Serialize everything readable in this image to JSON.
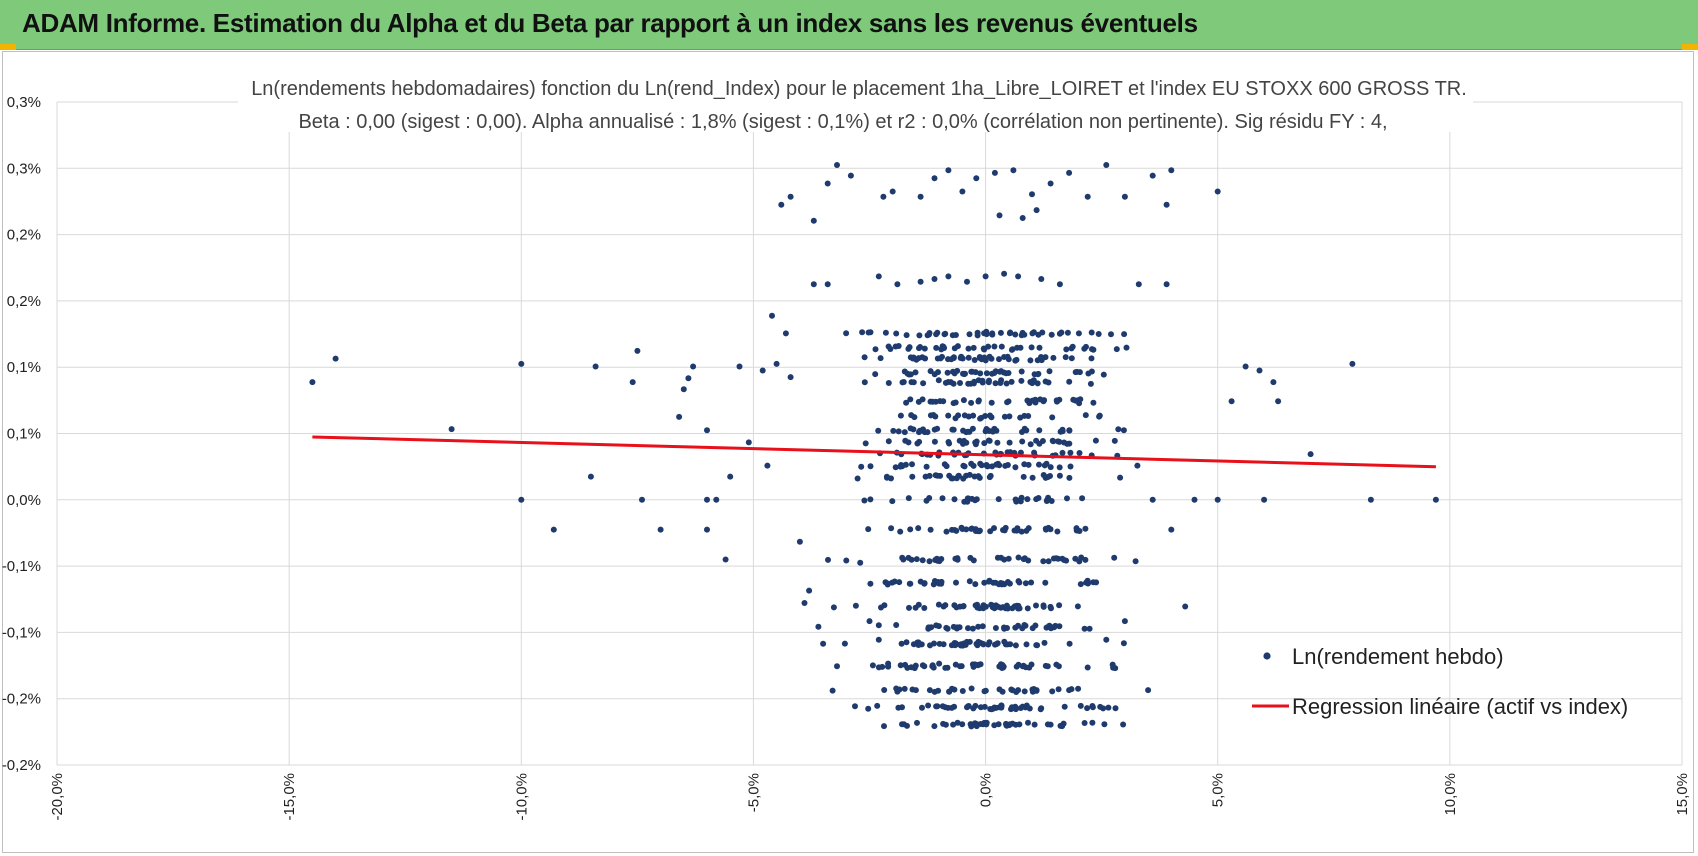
{
  "header": {
    "title": "ADAM Informe. Estimation du Alpha et du Beta par rapport à un index sans les revenus éventuels"
  },
  "colors": {
    "header_bg": "#7ec97a",
    "accent_corner": "#f2b400",
    "points": "#1f3b6e",
    "regression": "#e8101a"
  },
  "chart_data": {
    "type": "scatter",
    "title": "Ln(rendements hebdomadaires) fonction du Ln(rend_Index) pour le placement 1ha_Libre_LOIRET et l'index EU STOXX  600 GROSS TR.",
    "subtitle": "Beta : 0,00 (sigest : 0,00).  Alpha annualisé : 1,8% (sigest : 0,1%) et r2 : 0,0% (corrélation non pertinente). Sig résidu FY : 4,",
    "xlabel": "",
    "ylabel": "",
    "xlim": [
      -20,
      15
    ],
    "ylim": [
      -0.2,
      0.3
    ],
    "x_ticks": [
      "-20,0%",
      "-15,0%",
      "-10,0%",
      "-5,0%",
      "0,0%",
      "5,0%",
      "10,0%",
      "15,0%"
    ],
    "y_ticks": [
      "-0,2%",
      "-0,2%",
      "-0,1%",
      "-0,1%",
      "0,0%",
      "0,1%",
      "0,1%",
      "0,2%",
      "0,2%",
      "0,3%",
      "0,3%"
    ],
    "legend_position": "bottom-right",
    "series": [
      {
        "name": "Ln(rendement hebdo)",
        "kind": "scatter",
        "points": [
          [
            -14.5,
            0.0888
          ],
          [
            -14.0,
            0.1065
          ],
          [
            -11.5,
            0.0533
          ],
          [
            -10.0,
            0.1025
          ],
          [
            -10.0,
            0.0
          ],
          [
            -9.3,
            -0.0225
          ],
          [
            -8.5,
            0.0175
          ],
          [
            -8.4,
            0.1005
          ],
          [
            -7.5,
            0.1123
          ],
          [
            -7.6,
            0.0888
          ],
          [
            -7.4,
            0.0
          ],
          [
            -7.0,
            -0.0225
          ],
          [
            -6.6,
            0.0625
          ],
          [
            -6.5,
            0.0833
          ],
          [
            -6.4,
            0.0917
          ],
          [
            -6.3,
            0.1005
          ],
          [
            -6.0,
            0.0525
          ],
          [
            -6.0,
            0.0
          ],
          [
            -6.0,
            -0.0225
          ],
          [
            -5.8,
            0.0
          ],
          [
            -5.6,
            -0.045
          ],
          [
            -5.5,
            0.0175
          ],
          [
            -5.3,
            0.1005
          ],
          [
            -5.1,
            0.0433
          ],
          [
            -4.7,
            0.0258
          ],
          [
            -4.5,
            0.1025
          ],
          [
            -4.8,
            0.0975
          ],
          [
            -4.6,
            0.1388
          ],
          [
            -4.3,
            0.1255
          ],
          [
            -4.2,
            0.0925
          ],
          [
            -4.0,
            -0.0317
          ],
          [
            -3.8,
            -0.0685
          ],
          [
            -3.6,
            -0.0958
          ],
          [
            -3.9,
            -0.0778
          ],
          [
            -3.5,
            -0.1085
          ],
          [
            -3.2,
            -0.1255
          ],
          [
            -3.0,
            -0.0458
          ],
          [
            -2.7,
            -0.0475
          ],
          [
            -2.5,
            -0.0915
          ],
          [
            -2.3,
            -0.1055
          ],
          [
            -2.1,
            -0.1235
          ],
          [
            -1.8,
            -0.1565
          ],
          [
            -1.5,
            -0.1435
          ],
          [
            -1.2,
            -0.1435
          ],
          [
            -1.0,
            -0.1235
          ],
          [
            -0.7,
            -0.1695
          ],
          [
            -0.4,
            -0.1565
          ],
          [
            -0.1,
            -0.1565
          ],
          [
            0.3,
            -0.1565
          ],
          [
            0.7,
            -0.1435
          ],
          [
            1.1,
            -0.1435
          ],
          [
            1.4,
            -0.1695
          ],
          [
            1.8,
            -0.1435
          ],
          [
            2.2,
            -0.1265
          ],
          [
            2.6,
            -0.1055
          ],
          [
            3.0,
            -0.0915
          ],
          [
            3.5,
            -0.1435
          ],
          [
            4.3,
            -0.0805
          ],
          [
            4.0,
            -0.0225
          ],
          [
            3.6,
            0.0
          ],
          [
            4.5,
            0.0
          ],
          [
            5.0,
            0.0
          ],
          [
            5.3,
            0.0743
          ],
          [
            5.6,
            0.1005
          ],
          [
            5.9,
            0.0975
          ],
          [
            6.0,
            0.0
          ],
          [
            6.2,
            0.0888
          ],
          [
            6.3,
            0.0743
          ],
          [
            7.0,
            0.0345
          ],
          [
            7.9,
            0.1025
          ],
          [
            8.3,
            0.0
          ],
          [
            9.7,
            0.0
          ],
          [
            -4.4,
            0.2225
          ],
          [
            -4.2,
            0.2285
          ],
          [
            -3.7,
            0.2105
          ],
          [
            -3.4,
            0.2385
          ],
          [
            -3.2,
            0.2525
          ],
          [
            -2.9,
            0.2445
          ],
          [
            -2.2,
            0.2285
          ],
          [
            -2.0,
            0.2325
          ],
          [
            -1.4,
            0.2285
          ],
          [
            -1.1,
            0.2425
          ],
          [
            -0.8,
            0.2485
          ],
          [
            -0.5,
            0.2325
          ],
          [
            -0.2,
            0.2425
          ],
          [
            0.2,
            0.2465
          ],
          [
            0.6,
            0.2485
          ],
          [
            1.0,
            0.2305
          ],
          [
            1.4,
            0.2385
          ],
          [
            1.8,
            0.2465
          ],
          [
            2.2,
            0.2285
          ],
          [
            2.6,
            0.2525
          ],
          [
            3.0,
            0.2285
          ],
          [
            3.6,
            0.2445
          ],
          [
            3.9,
            0.2225
          ],
          [
            4.0,
            0.2485
          ],
          [
            5.0,
            0.2325
          ],
          [
            0.3,
            0.2145
          ],
          [
            0.8,
            0.2125
          ],
          [
            1.1,
            0.2185
          ],
          [
            -3.7,
            0.1625
          ],
          [
            -3.4,
            0.1625
          ],
          [
            -2.3,
            0.1685
          ],
          [
            -1.9,
            0.1625
          ],
          [
            -1.4,
            0.1645
          ],
          [
            -1.1,
            0.1665
          ],
          [
            -0.8,
            0.1685
          ],
          [
            -0.4,
            0.1645
          ],
          [
            0.0,
            0.1685
          ],
          [
            0.4,
            0.1705
          ],
          [
            0.7,
            0.1685
          ],
          [
            1.2,
            0.1665
          ],
          [
            1.6,
            0.1625
          ],
          [
            3.3,
            0.1625
          ],
          [
            3.9,
            0.1625
          ]
        ]
      },
      {
        "name": "Regression linéaire (actif vs index)",
        "kind": "line",
        "x": [
          -14.5,
          9.7
        ],
        "y": [
          0.0474,
          0.0249
        ]
      }
    ],
    "dense_cluster": {
      "x_range": [
        -4.5,
        4.5
      ],
      "y_levels": [
        0.1255,
        0.1145,
        0.1065,
        0.0958,
        0.0888,
        0.0743,
        0.0625,
        0.0525,
        0.0433,
        0.0345,
        0.0258,
        0.0175,
        0.0,
        -0.0225,
        -0.045,
        -0.0625,
        -0.0805,
        -0.0958,
        -0.1085,
        -0.1255,
        -0.1435,
        -0.1565,
        -0.1695
      ],
      "approx_count": 900
    }
  }
}
